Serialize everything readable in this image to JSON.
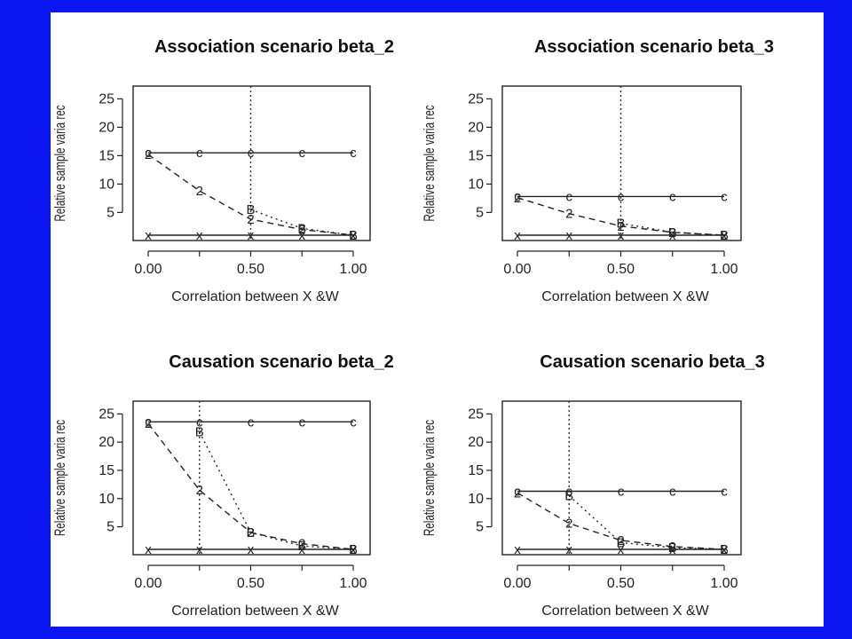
{
  "chart_data": [
    {
      "type": "line",
      "title": "Association   scenario   beta_2",
      "xlabel": "Correlation between X &W",
      "ylabel": "Relative sample varia rec",
      "xlim": [
        0,
        1
      ],
      "ylim": [
        1,
        26
      ],
      "xticks": [
        "0.00",
        "0.50",
        "1.00"
      ],
      "yticks": [
        5,
        10,
        15,
        20,
        25
      ],
      "x": [
        0,
        0.25,
        0.5,
        0.75,
        1
      ],
      "series": [
        {
          "marker": "c",
          "style": "solid",
          "values": [
            15.5,
            15.5,
            15.5,
            15.5,
            15.5
          ]
        },
        {
          "marker": "2",
          "style": "dashed",
          "values": [
            15.2,
            8.8,
            3.8,
            2.0,
            1.0
          ]
        },
        {
          "marker": "B",
          "style": "dotted",
          "x": [
            0.5,
            0.75,
            1
          ],
          "values": [
            5.5,
            2.2,
            1.0
          ]
        },
        {
          "marker": "x",
          "style": "solid",
          "values": [
            1,
            1,
            1,
            1,
            1
          ]
        }
      ],
      "vline": 0.5
    },
    {
      "type": "line",
      "title": "Association   scenario   beta_3",
      "xlabel": "Correlation between X &W",
      "ylabel": "Relative sample varia rec",
      "xlim": [
        0,
        1
      ],
      "ylim": [
        1,
        26
      ],
      "xticks": [
        "0.00",
        "0.50",
        "1.00"
      ],
      "yticks": [
        5,
        10,
        15,
        20,
        25
      ],
      "x": [
        0,
        0.25,
        0.5,
        0.75,
        1
      ],
      "series": [
        {
          "marker": "c",
          "style": "solid",
          "values": [
            7.8,
            7.8,
            7.8,
            7.8,
            7.8
          ]
        },
        {
          "marker": "2",
          "style": "dashed",
          "values": [
            7.6,
            4.8,
            2.6,
            1.5,
            1.0
          ]
        },
        {
          "marker": "B",
          "style": "dotted",
          "x": [
            0.5,
            0.75,
            1
          ],
          "values": [
            3.1,
            1.5,
            1.0
          ]
        },
        {
          "marker": "x",
          "style": "solid",
          "values": [
            1,
            1,
            1,
            1,
            1
          ]
        }
      ],
      "vline": 0.5
    },
    {
      "type": "line",
      "title": "Causation   scenario   beta_2",
      "xlabel": "Correlation between X &W",
      "ylabel": "Relative sample varia rec",
      "xlim": [
        0,
        1
      ],
      "ylim": [
        1,
        26
      ],
      "xticks": [
        "0.00",
        "0.50",
        "1.00"
      ],
      "yticks": [
        5,
        10,
        15,
        20,
        25
      ],
      "x": [
        0,
        0.25,
        0.5,
        0.75,
        1
      ],
      "series": [
        {
          "marker": "c",
          "style": "solid",
          "values": [
            23.6,
            23.6,
            23.6,
            23.6,
            23.6
          ]
        },
        {
          "marker": "2",
          "style": "dashed",
          "values": [
            23.3,
            11.5,
            4.0,
            2.0,
            1.0
          ]
        },
        {
          "marker": "B",
          "style": "dotted",
          "x": [
            0.25,
            0.5,
            0.75,
            1
          ],
          "values": [
            21.8,
            4.0,
            1.6,
            1.0
          ]
        },
        {
          "marker": "x",
          "style": "solid",
          "values": [
            1,
            1,
            1,
            1,
            1
          ]
        }
      ],
      "vline": 0.25
    },
    {
      "type": "line",
      "title": "Causation   scenario   beta_3",
      "xlabel": "Correlation between X &W",
      "ylabel": "Relative sample varia rec",
      "xlim": [
        0,
        1
      ],
      "ylim": [
        1,
        26
      ],
      "xticks": [
        "0.00",
        "0.50",
        "1.00"
      ],
      "yticks": [
        5,
        10,
        15,
        20,
        25
      ],
      "x": [
        0,
        0.25,
        0.5,
        0.75,
        1
      ],
      "series": [
        {
          "marker": "c",
          "style": "solid",
          "values": [
            11.3,
            11.3,
            11.3,
            11.3,
            11.3
          ]
        },
        {
          "marker": "2",
          "style": "dashed",
          "values": [
            11.0,
            5.6,
            2.6,
            1.5,
            1.0
          ]
        },
        {
          "marker": "B",
          "style": "dotted",
          "x": [
            0.25,
            0.5,
            0.75,
            1
          ],
          "values": [
            10.5,
            2.2,
            1.3,
            1.0
          ]
        },
        {
          "marker": "x",
          "style": "solid",
          "values": [
            1,
            1,
            1,
            1,
            1
          ]
        }
      ],
      "vline": 0.25
    }
  ]
}
